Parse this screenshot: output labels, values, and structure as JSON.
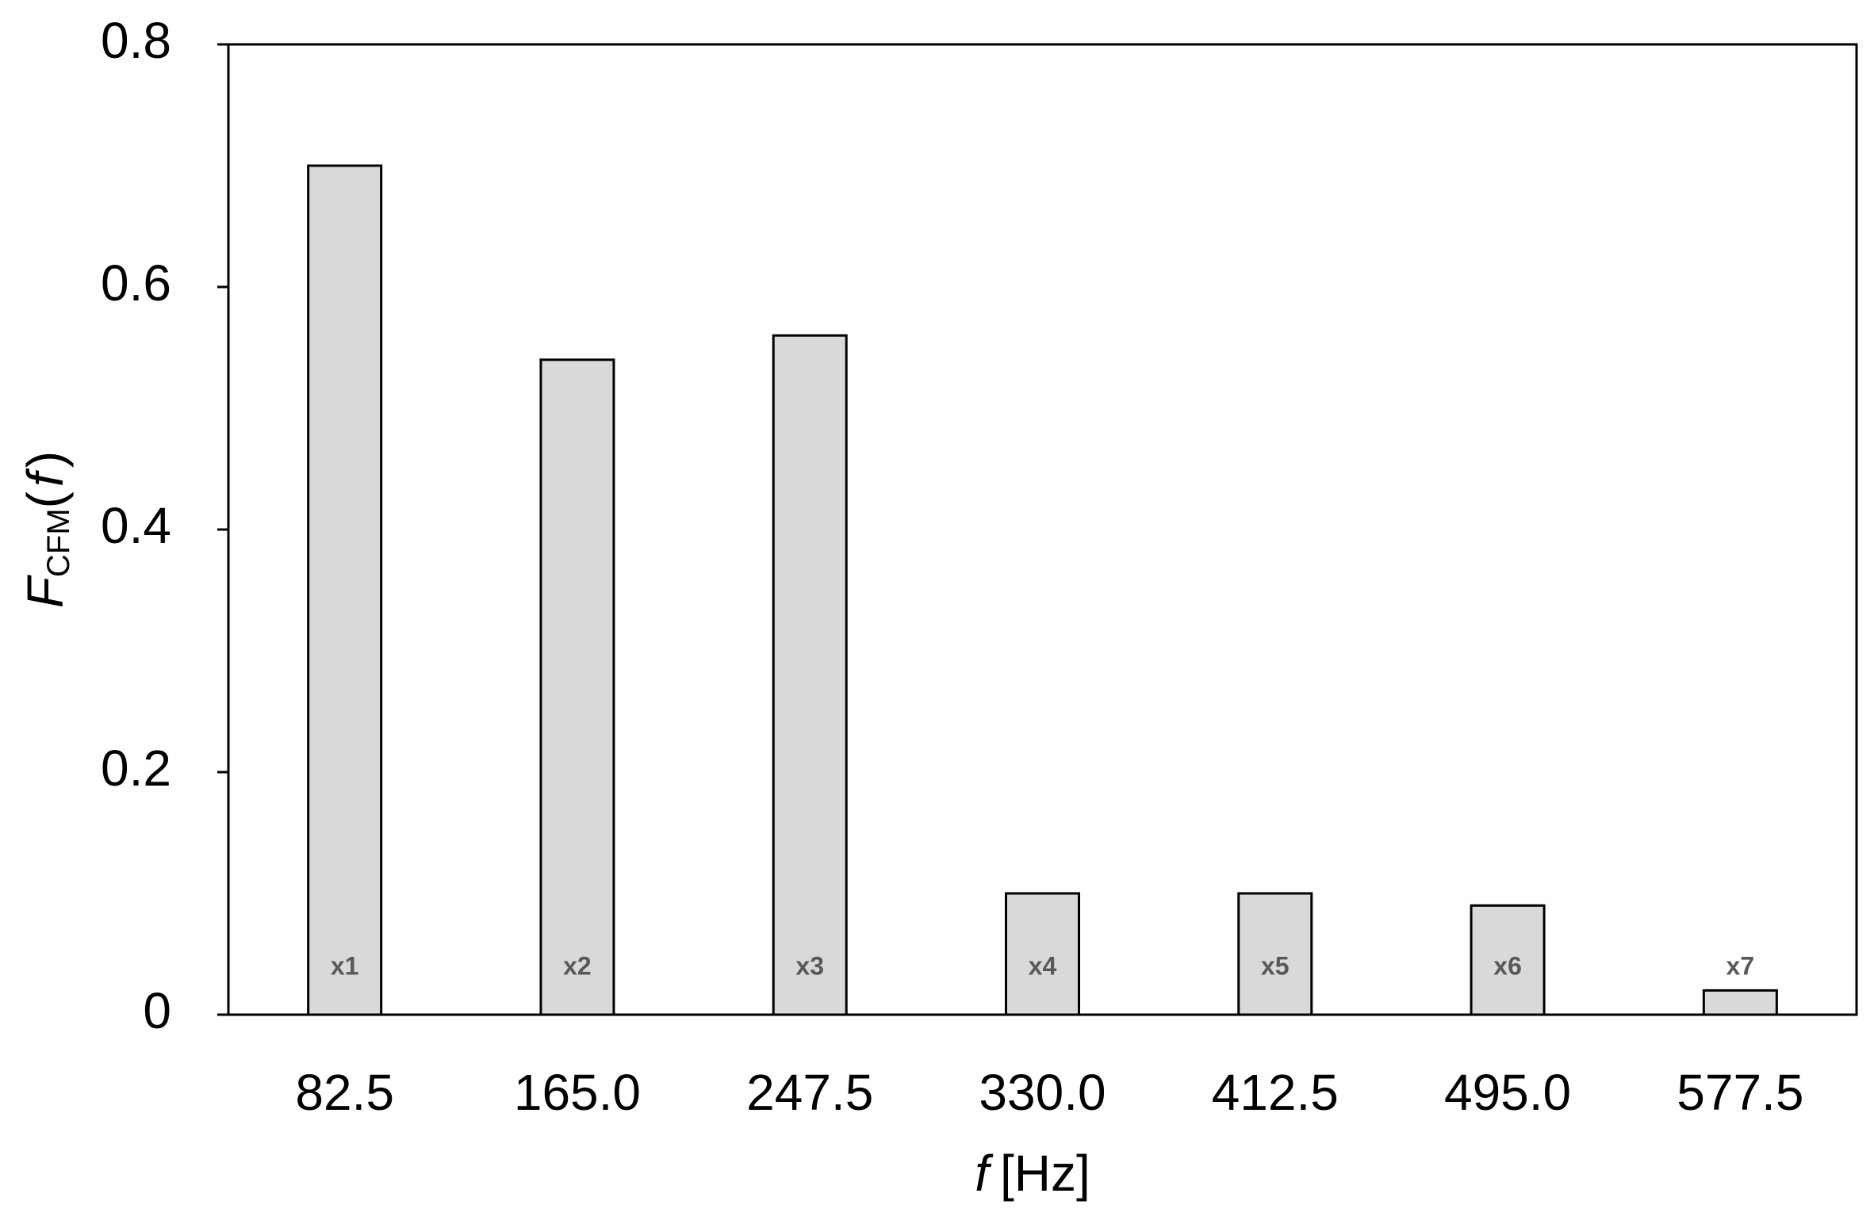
{
  "chart_data": {
    "type": "bar",
    "categories": [
      "82.5",
      "165.0",
      "247.5",
      "330.0",
      "412.5",
      "495.0",
      "577.5"
    ],
    "values": [
      0.7,
      0.54,
      0.56,
      0.1,
      0.1,
      0.09,
      0.02
    ],
    "bar_labels": [
      "x1",
      "x2",
      "x3",
      "x4",
      "x5",
      "x6",
      "x7"
    ],
    "color": "#d9d9d9",
    "ylim": [
      0,
      0.8
    ],
    "yticks": [
      0,
      0.2,
      0.4,
      0.6,
      0.8
    ],
    "x_label": [
      "f",
      "[Hz]"
    ],
    "y_label": [
      "F",
      "CFM",
      "(",
      "f",
      ")"
    ],
    "grid": false
  }
}
